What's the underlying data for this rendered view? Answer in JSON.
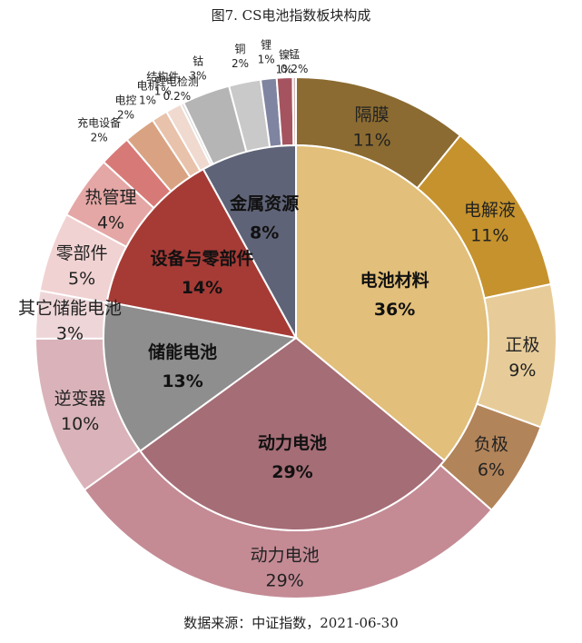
{
  "chart_data": {
    "type": "pie",
    "title": "图7. CS电池指数板块构成",
    "source": "数据来源：中证指数，2021-06-30",
    "inner": [
      {
        "name": "电池材料",
        "value_label": "36%",
        "value": 36,
        "color": "#e2bf7a"
      },
      {
        "name": "动力电池",
        "value_label": "29%",
        "value": 29,
        "color": "#a56d76"
      },
      {
        "name": "储能电池",
        "value_label": "13%",
        "value": 13,
        "color": "#8e8e8e"
      },
      {
        "name": "设备与零部件",
        "value_label": "14%",
        "value": 14,
        "color": "#a63b36"
      },
      {
        "name": "金属资源",
        "value_label": "8%",
        "value": 8,
        "color": "#5f6377"
      }
    ],
    "outer": [
      {
        "name": "隔膜",
        "value_label": "11%",
        "value": 11,
        "color": "#8b6b31"
      },
      {
        "name": "电解液",
        "value_label": "11%",
        "value": 11,
        "color": "#c5922d"
      },
      {
        "name": "正极",
        "value_label": "9%",
        "value": 9,
        "color": "#e7cc99"
      },
      {
        "name": "负极",
        "value_label": "6%",
        "value": 6,
        "color": "#b2845a"
      },
      {
        "name": "动力电池",
        "value_label": "29%",
        "value": 29,
        "color": "#c48b95"
      },
      {
        "name": "逆变器",
        "value_label": "10%",
        "value": 10,
        "color": "#d9b3b9"
      },
      {
        "name": "其它储能电池",
        "value_label": "3%",
        "value": 3,
        "color": "#eed6d8"
      },
      {
        "name": "零部件",
        "value_label": "5%",
        "value": 5,
        "color": "#f1d2d2"
      },
      {
        "name": "热管理",
        "value_label": "4%",
        "value": 4,
        "color": "#e4a7a5"
      },
      {
        "name": "充电设备",
        "value_label": "2%",
        "value": 2,
        "color": "#d77a77"
      },
      {
        "name": "电控",
        "value_label": "2%",
        "value": 2,
        "color": "#d9a383"
      },
      {
        "name": "电机",
        "value_label": "1%",
        "value": 1,
        "color": "#e8c2ab"
      },
      {
        "name": "结构件",
        "value_label": "1%",
        "value": 1,
        "color": "#f0d9cf"
      },
      {
        "name": "锂电检测",
        "value_label": "0.2%",
        "value": 0.2,
        "color": "#dcdcdc"
      },
      {
        "name": "钴",
        "value_label": "3%",
        "value": 3,
        "color": "#b5b5b5"
      },
      {
        "name": "铜",
        "value_label": "2%",
        "value": 2,
        "color": "#c9c9c9"
      },
      {
        "name": "锂",
        "value_label": "1%",
        "value": 1,
        "color": "#7f84a0"
      },
      {
        "name": "镍",
        "value_label": "1%",
        "value": 1,
        "color": "#a5545f"
      },
      {
        "name": "锰",
        "value_label": "0.2%",
        "value": 0.2,
        "color": "#d8b8b8"
      }
    ]
  }
}
